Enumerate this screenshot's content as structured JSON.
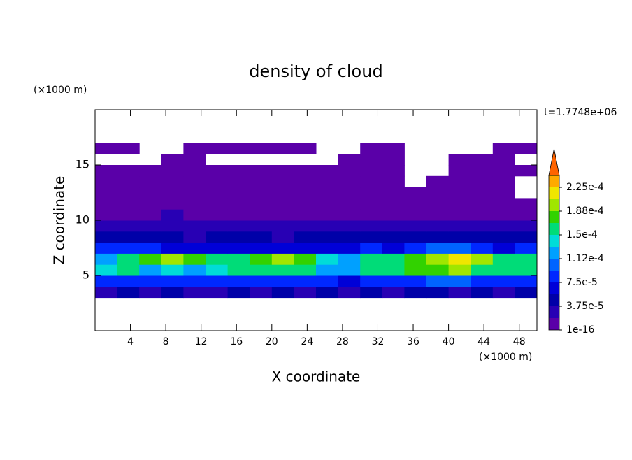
{
  "chart_data": {
    "type": "contour",
    "title": "density of cloud",
    "time_label": "t=1.7748e+06",
    "x_label": "X coordinate",
    "y_label": "Z coordinate",
    "x_unit": "(×1000 m)",
    "y_unit": "(×1000 m)",
    "xlim": [
      0,
      50
    ],
    "ylim": [
      0,
      20
    ],
    "xticks": [
      4,
      8,
      12,
      16,
      20,
      24,
      28,
      32,
      36,
      40,
      44,
      48
    ],
    "yticks": [
      5,
      10,
      15
    ],
    "x": [
      1.25,
      3.75,
      6.25,
      8.75,
      11.25,
      13.75,
      16.25,
      18.75,
      21.25,
      23.75,
      26.25,
      28.75,
      31.25,
      33.75,
      36.25,
      38.75,
      41.25,
      43.75,
      46.25,
      48.75
    ],
    "z": [
      3.5,
      4.5,
      5.5,
      6.5,
      7.5,
      8.5,
      9.5,
      10.5,
      11.5,
      12.5,
      13.5,
      14.5,
      15.5,
      16.5
    ],
    "values": [
      [
        3e-05,
        4e-05,
        3e-05,
        4e-05,
        3e-05,
        3e-05,
        4e-05,
        3e-05,
        4e-05,
        3e-05,
        4e-05,
        2e-05,
        4e-05,
        3e-05,
        4e-05,
        4e-05,
        3e-05,
        4e-05,
        3e-05,
        4e-05
      ],
      [
        9e-05,
        8e-05,
        9e-05,
        8e-05,
        9e-05,
        8e-05,
        9e-05,
        8e-05,
        9e-05,
        9e-05,
        8e-05,
        7e-05,
        8e-05,
        9e-05,
        9e-05,
        0.0001,
        0.0001,
        9e-05,
        8e-05,
        9e-05
      ],
      [
        0.00014,
        0.00015,
        0.00013,
        0.00014,
        0.00013,
        0.00014,
        0.00015,
        0.00016,
        0.00016,
        0.00015,
        0.00013,
        0.00012,
        0.00015,
        0.00016,
        0.00017,
        0.00018,
        0.00019,
        0.00016,
        0.00015,
        0.00015
      ],
      [
        0.00013,
        0.00015,
        0.00017,
        0.00019,
        0.00017,
        0.00015,
        0.00016,
        0.00018,
        0.00019,
        0.00017,
        0.00014,
        0.00013,
        0.00015,
        0.00016,
        0.00018,
        0.0002,
        0.00022,
        0.00019,
        0.00015,
        0.00016
      ],
      [
        8e-05,
        9e-05,
        8e-05,
        7e-05,
        6e-05,
        7e-05,
        6e-05,
        7e-05,
        6e-05,
        7e-05,
        6e-05,
        7e-05,
        8e-05,
        7e-05,
        8e-05,
        0.0001,
        0.00011,
        8e-05,
        7e-05,
        8e-05
      ],
      [
        5e-05,
        4e-05,
        5e-05,
        4e-05,
        3e-05,
        4e-05,
        5e-05,
        4e-05,
        3e-05,
        4e-05,
        5e-05,
        4e-05,
        4e-05,
        5e-05,
        4e-05,
        5e-05,
        5e-05,
        4e-05,
        5e-05,
        4e-05
      ],
      [
        3e-05,
        2e-05,
        3e-05,
        2e-05,
        3e-05,
        2e-05,
        3e-05,
        2e-05,
        2e-05,
        3e-05,
        2e-05,
        2e-05,
        3e-05,
        2e-05,
        3e-05,
        2e-05,
        2e-05,
        3e-05,
        2e-05,
        2e-05
      ],
      [
        1e-05,
        5e-06,
        1e-05,
        2e-05,
        1e-05,
        5e-06,
        1e-05,
        5e-06,
        1e-05,
        5e-06,
        1e-05,
        5e-06,
        1e-05,
        5e-06,
        1e-05,
        5e-06,
        1e-05,
        5e-06,
        1e-05,
        5e-06
      ],
      [
        5e-06,
        5e-06,
        5e-06,
        5e-06,
        5e-06,
        5e-06,
        5e-06,
        5e-06,
        5e-06,
        5e-06,
        5e-06,
        5e-06,
        5e-06,
        5e-06,
        5e-06,
        5e-06,
        5e-06,
        5e-06,
        5e-06,
        5e-06
      ],
      [
        4e-06,
        4e-06,
        4e-06,
        4e-06,
        4e-06,
        4e-06,
        4e-06,
        4e-06,
        4e-06,
        4e-06,
        4e-06,
        4e-06,
        4e-06,
        4e-06,
        4e-06,
        4e-06,
        4e-06,
        4e-06,
        4e-06,
        null
      ],
      [
        3e-06,
        3e-06,
        3e-06,
        3e-06,
        3e-06,
        3e-06,
        3e-06,
        3e-06,
        3e-06,
        3e-06,
        3e-06,
        3e-06,
        3e-06,
        3e-06,
        null,
        3e-06,
        3e-06,
        3e-06,
        3e-06,
        null
      ],
      [
        2e-06,
        2e-06,
        2e-06,
        2e-06,
        2e-06,
        2e-06,
        2e-06,
        2e-06,
        2e-06,
        2e-06,
        2e-06,
        2e-06,
        2e-06,
        2e-06,
        null,
        null,
        2e-06,
        2e-06,
        2e-06,
        2e-06
      ],
      [
        null,
        null,
        null,
        1e-06,
        1e-06,
        null,
        null,
        null,
        null,
        null,
        null,
        1e-06,
        1e-06,
        1e-06,
        null,
        null,
        1e-06,
        1e-06,
        1e-06,
        null
      ],
      [
        1e-06,
        1e-06,
        null,
        null,
        1e-06,
        1e-06,
        1e-06,
        1e-06,
        1e-06,
        1e-06,
        null,
        null,
        1e-06,
        1e-06,
        null,
        null,
        null,
        null,
        1e-06,
        1e-06
      ]
    ],
    "levels": [
      1e-16,
      1.875e-05,
      3.75e-05,
      5.625e-05,
      7.5e-05,
      9.375e-05,
      0.0001125,
      0.00013125,
      0.00015,
      0.00016875,
      0.0001875,
      0.00020625,
      0.000225,
      0.00024375
    ],
    "colors": [
      "#5a00a8",
      "#2800b4",
      "#0000a8",
      "#0000d8",
      "#0028ff",
      "#0064ff",
      "#00a0ff",
      "#00dcd8",
      "#00dc78",
      "#32d200",
      "#a0e600",
      "#f0e600",
      "#ffaa00",
      "#ff6400",
      "#ffaaaa"
    ],
    "colorbar_ticks": [
      {
        "value": 1e-16,
        "label": "1e-16"
      },
      {
        "value": 3.75e-05,
        "label": "3.75e-5"
      },
      {
        "value": 7.5e-05,
        "label": "7.5e-5"
      },
      {
        "value": 0.0001125,
        "label": "1.12e-4"
      },
      {
        "value": 0.00015,
        "label": "1.5e-4"
      },
      {
        "value": 0.0001875,
        "label": "1.88e-4"
      },
      {
        "value": 0.000225,
        "label": "2.25e-4"
      }
    ]
  }
}
